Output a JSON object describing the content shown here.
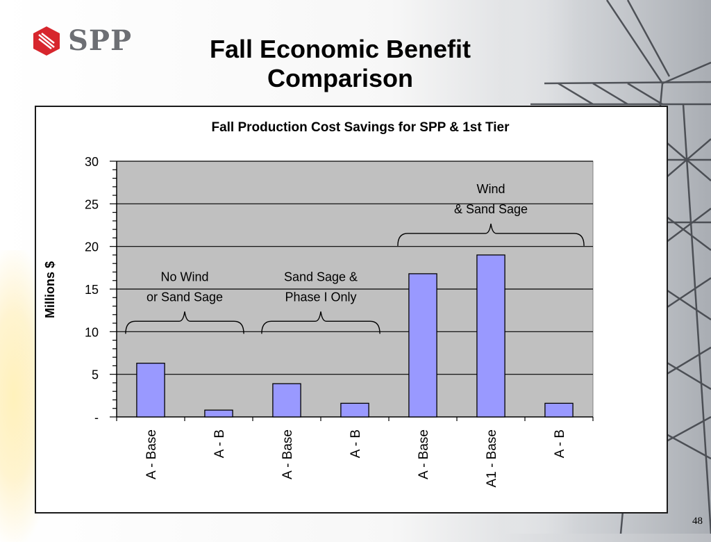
{
  "slide": {
    "logo_text": "SPP",
    "title_line1": "Fall Economic Benefit",
    "title_line2": "Comparison",
    "page_number": "48"
  },
  "chart_data": {
    "type": "bar",
    "title": "Fall Production Cost Savings for SPP & 1st Tier",
    "ylabel": "Millions $",
    "xlabel": "",
    "ylim": [
      0,
      30
    ],
    "y_ticks": [
      {
        "value": 0,
        "label": "-"
      },
      {
        "value": 5,
        "label": "5"
      },
      {
        "value": 10,
        "label": "10"
      },
      {
        "value": 15,
        "label": "15"
      },
      {
        "value": 20,
        "label": "20"
      },
      {
        "value": 25,
        "label": "25"
      },
      {
        "value": 30,
        "label": "30"
      }
    ],
    "grid": true,
    "categories": [
      "A - Base",
      "A - B",
      "A - Base",
      "A - B",
      "A - Base",
      "A1 - Base",
      "A - B"
    ],
    "values": [
      6.3,
      0.8,
      3.9,
      1.6,
      16.8,
      19.0,
      1.6
    ],
    "colors": {
      "bar": "#9999ff",
      "plot_bg": "#c0c0c0",
      "grid": "#000000"
    },
    "groups": [
      {
        "label_line1": "No Wind",
        "label_line2": "or Sand Sage",
        "first": 0,
        "last": 1
      },
      {
        "label_line1": "Sand Sage &",
        "label_line2": "Phase I Only",
        "first": 2,
        "last": 3
      },
      {
        "label_line1": "Wind",
        "label_line2": "& Sand Sage",
        "first": 4,
        "last": 6
      }
    ]
  }
}
